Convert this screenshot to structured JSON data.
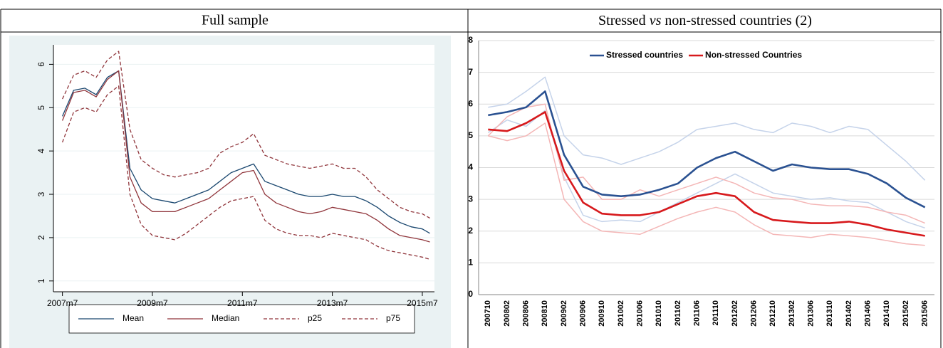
{
  "table": {
    "headers": [
      "Full sample",
      [
        "Stressed",
        "vs",
        "non-stressed countries (2)"
      ]
    ]
  },
  "chart_data": [
    {
      "type": "line",
      "grid": true,
      "legend": "bottom",
      "x": [
        2007.5,
        2007.75,
        2008,
        2008.25,
        2008.5,
        2008.75,
        2009,
        2009.25,
        2009.5,
        2009.75,
        2010,
        2010.25,
        2010.5,
        2010.75,
        2011,
        2011.25,
        2011.5,
        2011.75,
        2012,
        2012.25,
        2012.5,
        2012.75,
        2013,
        2013.25,
        2013.5,
        2013.75,
        2014,
        2014.25,
        2014.5,
        2014.75,
        2015,
        2015.25,
        2015.5,
        2015.667
      ],
      "xlim": [
        2007.3,
        2015.77
      ],
      "xticks": [
        {
          "value": 2007.5,
          "label": "2007m7"
        },
        {
          "value": 2009.5,
          "label": "2009m7"
        },
        {
          "value": 2011.5,
          "label": "2011m7"
        },
        {
          "value": 2013.5,
          "label": "2013m7"
        },
        {
          "value": 2015.5,
          "label": "2015m7"
        }
      ],
      "ylim": [
        0.75,
        6.45
      ],
      "yticks": [
        1,
        2,
        3,
        4,
        5,
        6
      ],
      "series": [
        {
          "name": "Mean",
          "color": "#1a476f",
          "dash": false,
          "values": [
            4.8,
            5.4,
            5.45,
            5.3,
            5.7,
            5.85,
            3.6,
            3.1,
            2.9,
            2.85,
            2.8,
            2.9,
            3.0,
            3.1,
            3.3,
            3.5,
            3.6,
            3.7,
            3.3,
            3.2,
            3.1,
            3.0,
            2.95,
            2.95,
            3.0,
            2.95,
            2.95,
            2.85,
            2.7,
            2.5,
            2.35,
            2.25,
            2.2,
            2.1
          ]
        },
        {
          "name": "Median",
          "color": "#90353b",
          "dash": false,
          "values": [
            4.7,
            5.35,
            5.4,
            5.25,
            5.65,
            5.85,
            3.4,
            2.8,
            2.6,
            2.6,
            2.6,
            2.7,
            2.8,
            2.9,
            3.1,
            3.3,
            3.5,
            3.55,
            3.0,
            2.8,
            2.7,
            2.6,
            2.55,
            2.6,
            2.7,
            2.65,
            2.6,
            2.55,
            2.4,
            2.2,
            2.05,
            2.0,
            1.95,
            1.9
          ]
        },
        {
          "name": "p25",
          "color": "#90353b",
          "dash": true,
          "values": [
            4.2,
            4.9,
            5.0,
            4.9,
            5.3,
            5.5,
            3.0,
            2.3,
            2.05,
            2.0,
            1.95,
            2.1,
            2.3,
            2.5,
            2.7,
            2.85,
            2.9,
            2.95,
            2.4,
            2.2,
            2.1,
            2.05,
            2.05,
            2.0,
            2.1,
            2.05,
            2.0,
            1.95,
            1.8,
            1.7,
            1.65,
            1.6,
            1.55,
            1.5
          ]
        },
        {
          "name": "p75",
          "color": "#90353b",
          "dash": true,
          "values": [
            5.2,
            5.75,
            5.85,
            5.7,
            6.1,
            6.3,
            4.5,
            3.8,
            3.6,
            3.45,
            3.4,
            3.45,
            3.5,
            3.6,
            3.95,
            4.1,
            4.2,
            4.4,
            3.9,
            3.8,
            3.7,
            3.65,
            3.6,
            3.65,
            3.7,
            3.6,
            3.6,
            3.4,
            3.1,
            2.9,
            2.7,
            2.6,
            2.55,
            2.45
          ]
        }
      ]
    },
    {
      "type": "line",
      "grid": true,
      "legend": "top",
      "categories": [
        "200710",
        "200802",
        "200806",
        "200810",
        "200902",
        "200906",
        "200910",
        "201002",
        "201006",
        "201010",
        "201102",
        "201106",
        "201110",
        "201202",
        "201206",
        "201210",
        "201302",
        "201306",
        "201310",
        "201402",
        "201406",
        "201410",
        "201502",
        "201506"
      ],
      "ylim": [
        0,
        8
      ],
      "yticks": [
        0,
        1,
        2,
        3,
        4,
        5,
        6,
        7,
        8
      ],
      "series": [
        {
          "color": "#c5d3ea",
          "values": [
            5.9,
            6.0,
            6.4,
            6.85,
            5.0,
            4.4,
            4.3,
            4.1,
            4.3,
            4.5,
            4.8,
            5.2,
            5.3,
            5.4,
            5.2,
            5.1,
            5.4,
            5.3,
            5.1,
            5.3,
            5.2,
            4.7,
            4.2,
            3.6
          ]
        },
        {
          "color": "#c5d3ea",
          "values": [
            5.1,
            5.5,
            5.3,
            5.8,
            3.7,
            2.5,
            2.3,
            2.35,
            2.3,
            2.6,
            2.9,
            3.2,
            3.5,
            3.8,
            3.5,
            3.2,
            3.1,
            3.0,
            3.05,
            2.95,
            2.9,
            2.6,
            2.3,
            2.1
          ]
        },
        {
          "color": "#f4b6b6",
          "values": [
            5.0,
            5.6,
            5.9,
            6.0,
            3.6,
            3.7,
            3.0,
            3.0,
            3.3,
            3.1,
            3.3,
            3.5,
            3.7,
            3.5,
            3.2,
            3.05,
            3.0,
            2.85,
            2.8,
            2.8,
            2.75,
            2.6,
            2.5,
            2.25
          ]
        },
        {
          "color": "#f4b6b6",
          "values": [
            5.0,
            4.85,
            5.0,
            5.4,
            3.0,
            2.3,
            2.0,
            1.95,
            1.9,
            2.15,
            2.4,
            2.6,
            2.75,
            2.6,
            2.2,
            1.9,
            1.85,
            1.8,
            1.9,
            1.85,
            1.8,
            1.7,
            1.6,
            1.55
          ]
        },
        {
          "name": "Stressed countries",
          "color": "#2a5191",
          "values": [
            5.65,
            5.75,
            5.9,
            6.4,
            4.4,
            3.4,
            3.15,
            3.1,
            3.15,
            3.3,
            3.5,
            4.0,
            4.3,
            4.5,
            4.2,
            3.9,
            4.1,
            4.0,
            3.95,
            3.95,
            3.8,
            3.5,
            3.05,
            2.75
          ]
        },
        {
          "name": "Non-stressed Countries",
          "color": "#d7191c",
          "values": [
            5.2,
            5.15,
            5.4,
            5.75,
            3.9,
            2.9,
            2.55,
            2.5,
            2.5,
            2.6,
            2.85,
            3.1,
            3.2,
            3.1,
            2.6,
            2.35,
            2.3,
            2.25,
            2.25,
            2.3,
            2.2,
            2.05,
            1.95,
            1.85
          ]
        }
      ]
    }
  ]
}
